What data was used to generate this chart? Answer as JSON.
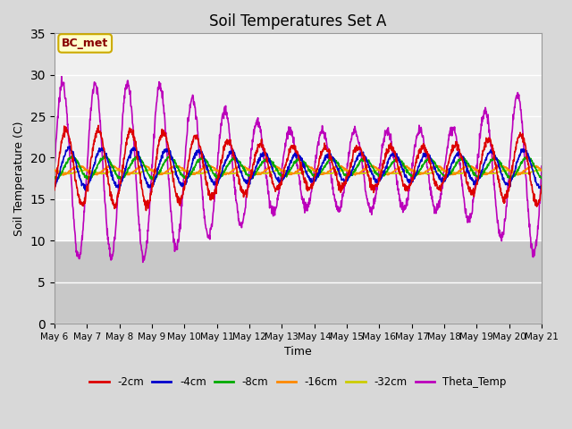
{
  "title": "Soil Temperatures Set A",
  "xlabel": "Time",
  "ylabel": "Soil Temperature (C)",
  "ylim": [
    0,
    35
  ],
  "yticks": [
    0,
    5,
    10,
    15,
    20,
    25,
    30,
    35
  ],
  "annotation_text": "BC_met",
  "annotation_bg": "#ffffcc",
  "annotation_border": "#ccaa00",
  "annotation_text_color": "#880000",
  "x_tick_labels": [
    "May 6",
    "May 7",
    "May 8",
    "May 9",
    "May 10",
    "May 11",
    "May 12",
    "May 13",
    "May 14",
    "May 15",
    "May 16",
    "May 17",
    "May 18",
    "May 19",
    "May 20",
    "May 21"
  ],
  "bg_color": "#d8d8d8",
  "plot_bg_upper": "#f0f0f0",
  "plot_bg_lower": "#c8c8c8",
  "grid_color": "#ffffff",
  "figsize": [
    6.4,
    4.8
  ],
  "dpi": 100,
  "series_order": [
    "-2cm",
    "-4cm",
    "-8cm",
    "-16cm",
    "-32cm",
    "Theta_Temp"
  ],
  "colors": {
    "-2cm": "#dd0000",
    "-4cm": "#0000cc",
    "-8cm": "#00aa00",
    "-16cm": "#ff8800",
    "-32cm": "#cccc00",
    "Theta_Temp": "#bb00bb"
  }
}
